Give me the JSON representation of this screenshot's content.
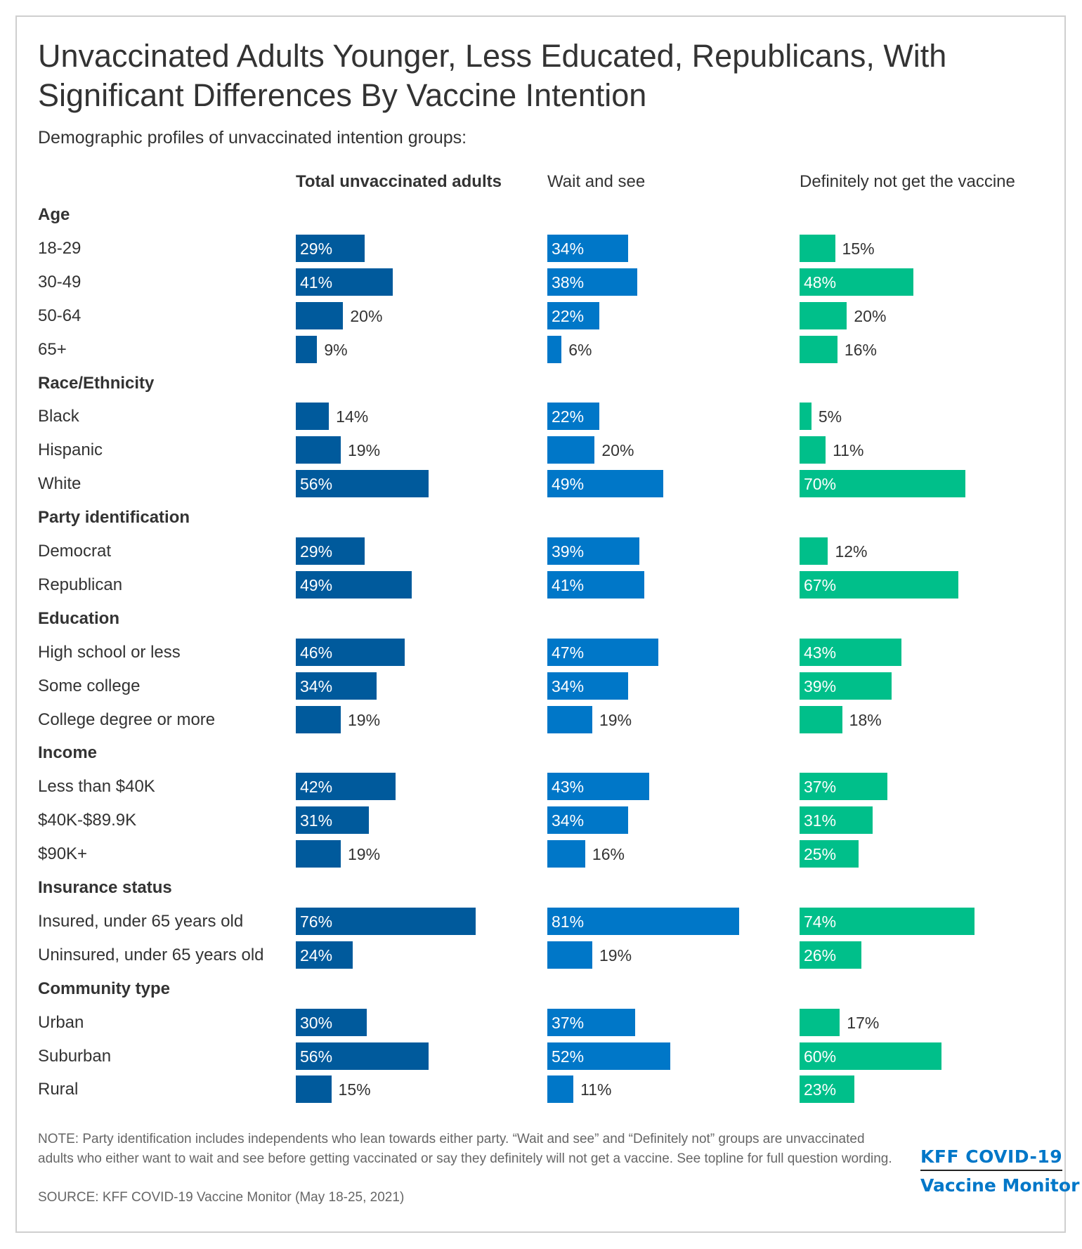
{
  "chart_data": {
    "type": "bar",
    "orientation": "horizontal",
    "title": "Unvaccinated Adults Younger, Less Educated, Republicans, With Significant Differences By Vaccine Intention",
    "subtitle": "Demographic profiles of unvaccinated intention groups:",
    "unit": "%",
    "series": [
      {
        "name": "Total unvaccinated adults",
        "color": "#005a9c"
      },
      {
        "name": "Wait and see",
        "color": "#0077c8"
      },
      {
        "name": "Definitely not get the vaccine",
        "color": "#00bf8a"
      }
    ],
    "groups": [
      {
        "label": "Age",
        "rows": [
          {
            "label": "18-29",
            "values": [
              29,
              34,
              15
            ]
          },
          {
            "label": "30-49",
            "values": [
              41,
              38,
              48
            ]
          },
          {
            "label": "50-64",
            "values": [
              20,
              22,
              20
            ]
          },
          {
            "label": "65+",
            "values": [
              9,
              6,
              16
            ]
          }
        ]
      },
      {
        "label": "Race/Ethnicity",
        "rows": [
          {
            "label": "Black",
            "values": [
              14,
              22,
              5
            ]
          },
          {
            "label": "Hispanic",
            "values": [
              19,
              20,
              11
            ]
          },
          {
            "label": "White",
            "values": [
              56,
              49,
              70
            ]
          }
        ]
      },
      {
        "label": "Party identification",
        "rows": [
          {
            "label": "Democrat",
            "values": [
              29,
              39,
              12
            ]
          },
          {
            "label": "Republican",
            "values": [
              49,
              41,
              67
            ]
          }
        ]
      },
      {
        "label": "Education",
        "rows": [
          {
            "label": "High school or less",
            "values": [
              46,
              47,
              43
            ]
          },
          {
            "label": "Some college",
            "values": [
              34,
              34,
              39
            ]
          },
          {
            "label": "College degree or more",
            "values": [
              19,
              19,
              18
            ]
          }
        ]
      },
      {
        "label": "Income",
        "rows": [
          {
            "label": "Less than $40K",
            "values": [
              42,
              43,
              37
            ]
          },
          {
            "label": "$40K-$89.9K",
            "values": [
              31,
              34,
              31
            ]
          },
          {
            "label": "$90K+",
            "values": [
              19,
              16,
              25
            ]
          }
        ]
      },
      {
        "label": "Insurance status",
        "rows": [
          {
            "label": "Insured, under 65 years old",
            "values": [
              76,
              81,
              74
            ]
          },
          {
            "label": "Uninsured, under 65 years old",
            "values": [
              24,
              19,
              26
            ]
          }
        ]
      },
      {
        "label": "Community type",
        "rows": [
          {
            "label": "Urban",
            "values": [
              30,
              37,
              17
            ]
          },
          {
            "label": "Suburban",
            "values": [
              56,
              52,
              60
            ]
          },
          {
            "label": "Rural",
            "values": [
              15,
              11,
              23
            ]
          }
        ]
      }
    ]
  },
  "footer": {
    "note": "NOTE: Party identification includes independents who lean towards either party. “Wait and see” and “Definitely not” groups are unvaccinated adults who either want to wait and see before getting vaccinated or say they definitely will not get a vaccine. See topline for full question wording.",
    "source": "SOURCE: KFF COVID-19 Vaccine Monitor (May 18-25, 2021)",
    "logo_line1": "KFF COVID-19",
    "logo_line2": "Vaccine Monitor"
  }
}
